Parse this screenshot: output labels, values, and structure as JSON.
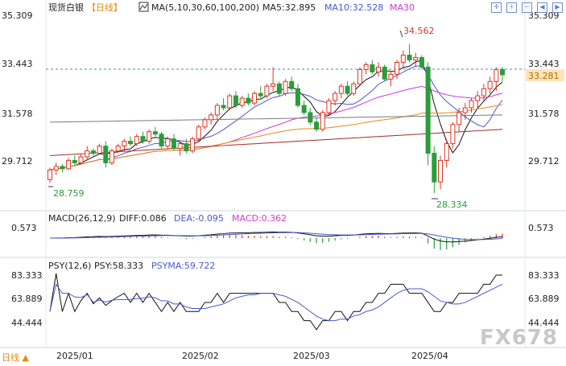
{
  "header": {
    "instrument": "现货白银",
    "period": "【日线】",
    "ma_title": "MA(5,10,30,60,100,200)",
    "ma5": "MA5:32.895",
    "ma10": "MA10:32.528",
    "ma30": "MA30"
  },
  "price_axis": {
    "ticks": [
      "35.309",
      "33.443",
      "31.578",
      "29.712"
    ],
    "current": "33.281"
  },
  "annotations": {
    "high": "34.562",
    "low": "28.334",
    "start_low": "28.759"
  },
  "macd_panel": {
    "title": "MACD(26,12,9)",
    "diff": "DIFF:0.086",
    "dea": "DEA:-0.095",
    "macd": "MACD:0.362",
    "tick": "0.573"
  },
  "psy_panel": {
    "title": "PSY(12,6)",
    "psy": "PSY:58.333",
    "psyma": "PSYMA:59.722",
    "ticks": [
      "83.333",
      "63.889",
      "44.444"
    ]
  },
  "footer": {
    "period_button": "日线 ▲",
    "months": [
      "2025/01",
      "2025/02",
      "2025/03",
      "2025/04"
    ]
  },
  "watermark": "FX678",
  "colors": {
    "up": "#e0341f",
    "down": "#2a9d3a",
    "ma5": "#111111",
    "ma10": "#4a58d0",
    "ma30": "#d13bd1",
    "ma60": "#e48a14",
    "ma100": "#7a7a7a",
    "ma200": "#a52a2a"
  },
  "chart_data": {
    "type": "candlestick",
    "y_range": [
      28.0,
      35.8
    ],
    "y_ticks": [
      35.309,
      33.443,
      31.578,
      29.712
    ],
    "current_price": 33.281,
    "high_marker": 34.562,
    "low_marker": 28.334,
    "start_low_marker": 28.759,
    "candles": [
      [
        28.9,
        29.4,
        28.76,
        29.3
      ],
      [
        29.3,
        29.6,
        29.1,
        29.45
      ],
      [
        29.45,
        29.55,
        29.2,
        29.35
      ],
      [
        29.35,
        29.8,
        29.3,
        29.7
      ],
      [
        29.7,
        29.9,
        29.5,
        29.6
      ],
      [
        29.6,
        29.95,
        29.55,
        29.85
      ],
      [
        29.85,
        30.3,
        29.7,
        30.1
      ],
      [
        30.1,
        30.2,
        29.9,
        30.0
      ],
      [
        30.0,
        30.4,
        29.95,
        30.3
      ],
      [
        30.3,
        30.5,
        29.4,
        29.6
      ],
      [
        29.6,
        30.2,
        29.5,
        30.1
      ],
      [
        30.1,
        30.4,
        30.0,
        30.3
      ],
      [
        30.3,
        30.6,
        30.1,
        30.5
      ],
      [
        30.5,
        30.7,
        30.3,
        30.4
      ],
      [
        30.4,
        30.8,
        30.3,
        30.7
      ],
      [
        30.7,
        30.9,
        30.4,
        30.5
      ],
      [
        30.5,
        31.0,
        30.4,
        30.9
      ],
      [
        30.9,
        31.1,
        30.7,
        30.8
      ],
      [
        30.8,
        30.9,
        30.2,
        30.3
      ],
      [
        30.3,
        30.7,
        30.2,
        30.6
      ],
      [
        30.6,
        30.8,
        30.1,
        30.2
      ],
      [
        30.2,
        30.5,
        29.9,
        30.4
      ],
      [
        30.4,
        30.6,
        30.0,
        30.1
      ],
      [
        30.1,
        30.7,
        30.0,
        30.6
      ],
      [
        30.6,
        31.2,
        30.5,
        31.1
      ],
      [
        31.1,
        31.5,
        31.0,
        31.4
      ],
      [
        31.4,
        31.7,
        31.2,
        31.6
      ],
      [
        31.6,
        32.1,
        31.4,
        32.0
      ],
      [
        32.0,
        32.3,
        31.8,
        31.9
      ],
      [
        31.9,
        32.5,
        31.8,
        32.4
      ],
      [
        32.4,
        32.6,
        31.9,
        32.0
      ],
      [
        32.0,
        32.4,
        31.9,
        32.3
      ],
      [
        32.3,
        32.5,
        32.0,
        32.1
      ],
      [
        32.1,
        32.6,
        32.0,
        32.5
      ],
      [
        32.5,
        32.8,
        32.3,
        32.4
      ],
      [
        32.4,
        32.9,
        32.3,
        32.8
      ],
      [
        32.8,
        33.6,
        32.6,
        32.9
      ],
      [
        32.9,
        33.0,
        32.4,
        32.5
      ],
      [
        32.5,
        33.1,
        32.4,
        33.0
      ],
      [
        33.0,
        33.2,
        32.6,
        32.7
      ],
      [
        32.7,
        32.9,
        31.9,
        32.0
      ],
      [
        32.0,
        32.2,
        31.6,
        31.7
      ],
      [
        31.7,
        31.9,
        31.2,
        31.3
      ],
      [
        31.3,
        31.5,
        30.9,
        31.0
      ],
      [
        31.0,
        31.8,
        30.9,
        31.7
      ],
      [
        31.7,
        32.3,
        31.6,
        32.2
      ],
      [
        32.2,
        32.6,
        32.0,
        32.5
      ],
      [
        32.5,
        32.9,
        32.3,
        32.8
      ],
      [
        32.8,
        33.0,
        32.4,
        32.5
      ],
      [
        32.5,
        33.0,
        32.4,
        32.9
      ],
      [
        32.9,
        33.6,
        32.8,
        33.5
      ],
      [
        33.5,
        33.8,
        33.3,
        33.7
      ],
      [
        33.7,
        33.9,
        33.3,
        33.4
      ],
      [
        33.4,
        33.8,
        33.2,
        33.6
      ],
      [
        33.6,
        33.7,
        33.0,
        33.1
      ],
      [
        33.1,
        33.4,
        32.8,
        33.3
      ],
      [
        33.3,
        33.9,
        33.1,
        33.8
      ],
      [
        33.8,
        34.3,
        33.6,
        34.1
      ],
      [
        34.1,
        34.56,
        33.8,
        33.9
      ],
      [
        33.9,
        34.2,
        33.6,
        34.0
      ],
      [
        34.0,
        34.1,
        33.5,
        33.6
      ],
      [
        33.6,
        33.8,
        29.5,
        30.0
      ],
      [
        30.0,
        30.3,
        28.33,
        28.8
      ],
      [
        28.8,
        29.9,
        28.5,
        29.7
      ],
      [
        29.7,
        30.6,
        29.4,
        30.4
      ],
      [
        30.4,
        31.3,
        30.2,
        31.2
      ],
      [
        31.2,
        31.9,
        30.9,
        31.7
      ],
      [
        31.7,
        32.1,
        31.4,
        31.9
      ],
      [
        31.9,
        32.3,
        31.7,
        32.2
      ],
      [
        32.2,
        32.6,
        31.9,
        32.4
      ],
      [
        32.4,
        32.9,
        32.2,
        32.7
      ],
      [
        32.7,
        33.2,
        32.5,
        33.0
      ],
      [
        33.0,
        33.6,
        32.6,
        33.5
      ],
      [
        33.5,
        33.6,
        33.0,
        33.28
      ]
    ]
  }
}
